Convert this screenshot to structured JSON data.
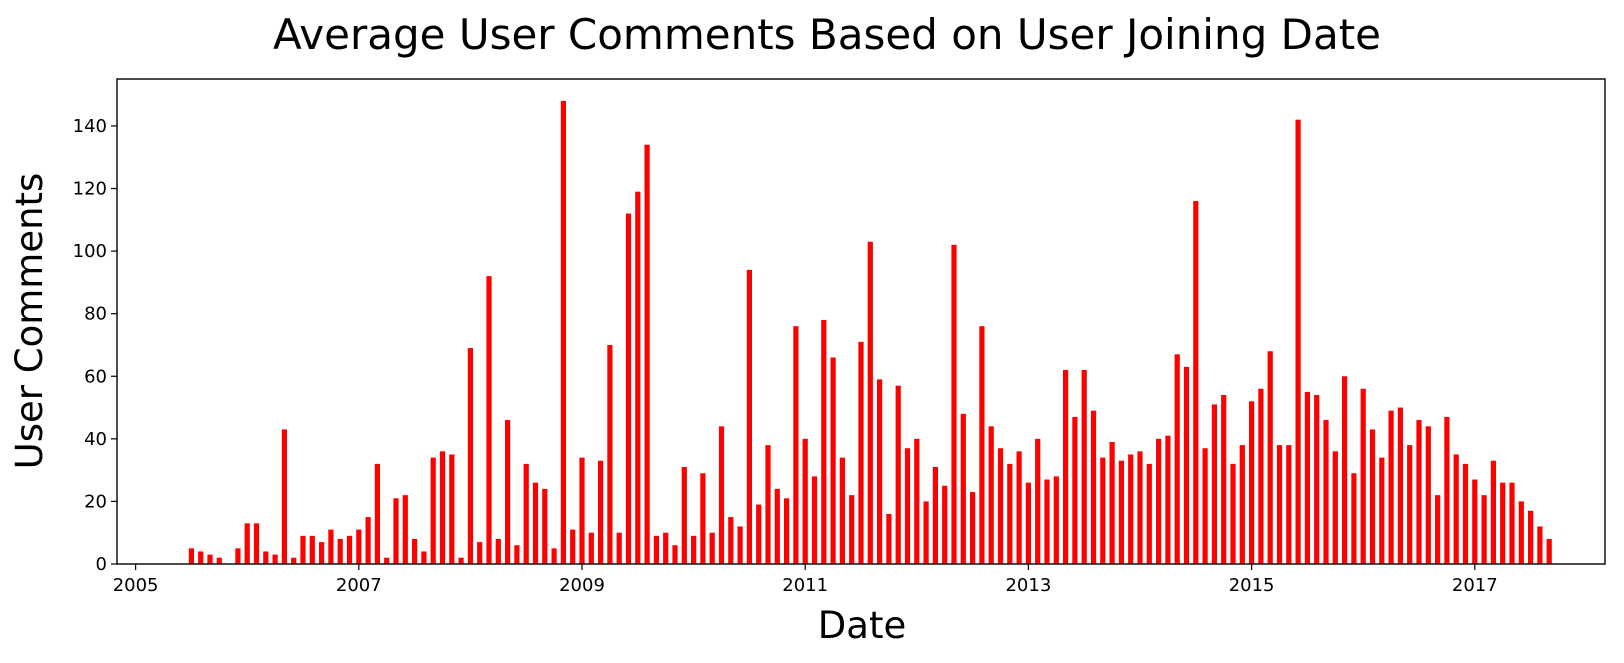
{
  "chart_data": {
    "type": "bar",
    "title": "Average User Comments Based on User Joining Date",
    "xlabel": "Date",
    "ylabel": "User Comments",
    "grid": false,
    "bar_color": "#ff0000",
    "x_unit": "month",
    "xlim": [
      "2004-11",
      "2018-03"
    ],
    "ylim": [
      0,
      155
    ],
    "x_ticks": [
      "2005",
      "2007",
      "2009",
      "2011",
      "2013",
      "2015",
      "2017"
    ],
    "y_ticks": [
      0,
      20,
      40,
      60,
      80,
      100,
      120,
      140
    ],
    "x": [
      "2005-07",
      "2005-08",
      "2005-09",
      "2005-10",
      "2005-12",
      "2006-01",
      "2006-02",
      "2006-03",
      "2006-04",
      "2006-05",
      "2006-06",
      "2006-07",
      "2006-08",
      "2006-09",
      "2006-10",
      "2006-11",
      "2006-12",
      "2007-01",
      "2007-02",
      "2007-03",
      "2007-04",
      "2007-05",
      "2007-06",
      "2007-07",
      "2007-08",
      "2007-09",
      "2007-10",
      "2007-11",
      "2007-12",
      "2008-01",
      "2008-02",
      "2008-03",
      "2008-04",
      "2008-05",
      "2008-06",
      "2008-07",
      "2008-08",
      "2008-09",
      "2008-10",
      "2008-11",
      "2008-12",
      "2009-01",
      "2009-02",
      "2009-03",
      "2009-04",
      "2009-05",
      "2009-06",
      "2009-07",
      "2009-08",
      "2009-09",
      "2009-10",
      "2009-11",
      "2009-12",
      "2010-01",
      "2010-02",
      "2010-03",
      "2010-04",
      "2010-05",
      "2010-06",
      "2010-07",
      "2010-08",
      "2010-09",
      "2010-10",
      "2010-11",
      "2010-12",
      "2011-01",
      "2011-02",
      "2011-03",
      "2011-04",
      "2011-05",
      "2011-06",
      "2011-07",
      "2011-08",
      "2011-09",
      "2011-10",
      "2011-11",
      "2011-12",
      "2012-01",
      "2012-02",
      "2012-03",
      "2012-04",
      "2012-05",
      "2012-06",
      "2012-07",
      "2012-08",
      "2012-09",
      "2012-10",
      "2012-11",
      "2012-12",
      "2013-01",
      "2013-02",
      "2013-03",
      "2013-04",
      "2013-05",
      "2013-06",
      "2013-07",
      "2013-08",
      "2013-09",
      "2013-10",
      "2013-11",
      "2013-12",
      "2014-01",
      "2014-02",
      "2014-03",
      "2014-04",
      "2014-05",
      "2014-06",
      "2014-07",
      "2014-08",
      "2014-09",
      "2014-10",
      "2014-11",
      "2014-12",
      "2015-01",
      "2015-02",
      "2015-03",
      "2015-04",
      "2015-05",
      "2015-06",
      "2015-07",
      "2015-08",
      "2015-09",
      "2015-10",
      "2015-11",
      "2015-12",
      "2016-01",
      "2016-02",
      "2016-03",
      "2016-04",
      "2016-05",
      "2016-06",
      "2016-07",
      "2016-08",
      "2016-09",
      "2016-10",
      "2016-11",
      "2016-12",
      "2017-01",
      "2017-02",
      "2017-03",
      "2017-04",
      "2017-05",
      "2017-06",
      "2017-07",
      "2017-08",
      "2017-09"
    ],
    "values": [
      5,
      4,
      3,
      2,
      5,
      13,
      13,
      4,
      3,
      43,
      2,
      9,
      9,
      7,
      11,
      8,
      9,
      11,
      15,
      32,
      2,
      21,
      22,
      8,
      4,
      34,
      36,
      35,
      2,
      69,
      7,
      92,
      8,
      46,
      6,
      32,
      26,
      24,
      5,
      148,
      11,
      34,
      10,
      33,
      70,
      10,
      112,
      119,
      134,
      9,
      10,
      6,
      31,
      9,
      29,
      10,
      44,
      15,
      12,
      94,
      19,
      38,
      24,
      21,
      76,
      40,
      28,
      78,
      66,
      34,
      22,
      71,
      103,
      59,
      16,
      57,
      37,
      40,
      20,
      31,
      25,
      102,
      48,
      23,
      76,
      44,
      37,
      32,
      36,
      26,
      40,
      27,
      28,
      62,
      47,
      62,
      49,
      34,
      39,
      33,
      35,
      36,
      32,
      40,
      41,
      67,
      63,
      116,
      37,
      51,
      54,
      32,
      38,
      52,
      56,
      68,
      38,
      38,
      142,
      55,
      54,
      46,
      36,
      60,
      29,
      56,
      43,
      34,
      49,
      50,
      38,
      46,
      44,
      22,
      47,
      35,
      32,
      27,
      22,
      33,
      26,
      26,
      20,
      17,
      12,
      8
    ]
  }
}
